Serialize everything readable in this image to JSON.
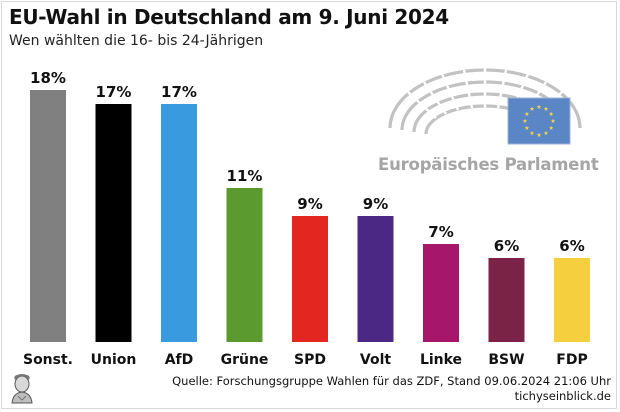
{
  "header": {
    "title": "EU-Wahl in Deutschland am 9. Juni 2024",
    "subtitle": "Wen wählten die 16- bis 24-Jährigen"
  },
  "logo": {
    "text": "Europäisches Parlament",
    "icon": "parliament-hemicycle-icon",
    "flag_color": "#5b86c5",
    "star_color": "#f5d547"
  },
  "footer": {
    "source": "Quelle: Forschungsgruppe Wahlen für das ZDF, Stand 09.06.2024 21:06 Uhr",
    "site": "tichyseinblick.de",
    "publisher_icon": "bust-engraving-icon"
  },
  "chart_data": {
    "type": "bar",
    "title": "EU-Wahl in Deutschland am 9. Juni 2024",
    "subtitle": "Wen wählten die 16- bis 24-Jährigen",
    "xlabel": "",
    "ylabel": "",
    "grid": false,
    "categories": [
      "Sonst.",
      "Union",
      "AfD",
      "Grüne",
      "SPD",
      "Volt",
      "Linke",
      "BSW",
      "FDP"
    ],
    "values": [
      18,
      17,
      17,
      11,
      9,
      9,
      7,
      6,
      6
    ],
    "value_labels": [
      "18%",
      "17%",
      "17%",
      "11%",
      "9%",
      "9%",
      "7%",
      "6%",
      "6%"
    ],
    "colors": [
      "#808080",
      "#000000",
      "#3a9ae0",
      "#5b9a2e",
      "#e3261f",
      "#4b2884",
      "#a6166a",
      "#7b2347",
      "#f6cf3e"
    ],
    "unit": "%"
  }
}
